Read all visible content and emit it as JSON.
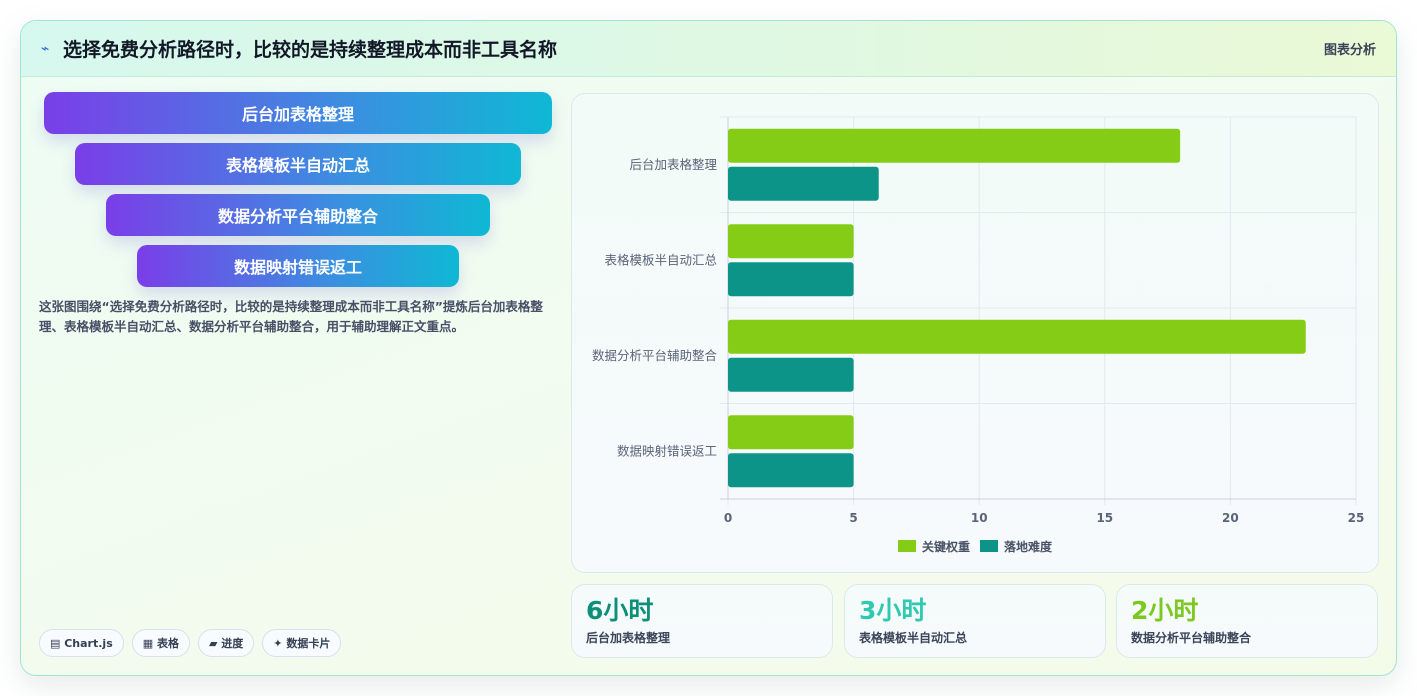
{
  "header": {
    "icon": "lightning-icon",
    "title": "选择免费分析路径时，比较的是持续整理成本而非工具名称",
    "tag": "图表分析"
  },
  "funnel": {
    "items": [
      "后台加表格整理",
      "表格模板半自动汇总",
      "数据分析平台辅助整合",
      "数据映射错误返工"
    ]
  },
  "description": "这张图围绕“选择免费分析路径时，比较的是持续整理成本而非工具名称”提炼后台加表格整理、表格模板半自动汇总、数据分析平台辅助整合，用于辅助理解正文重点。",
  "chips": [
    {
      "icon": "chart-icon",
      "label": "Chart.js"
    },
    {
      "icon": "table-icon",
      "label": "表格"
    },
    {
      "icon": "progress-icon",
      "label": "进度"
    },
    {
      "icon": "sparkle-icon",
      "label": "数据卡片"
    }
  ],
  "stats": [
    {
      "value": "6小时",
      "label": "后台加表格整理",
      "color": "#0d8f7a"
    },
    {
      "value": "3小时",
      "label": "表格模板半自动汇总",
      "color": "#2ec9b0"
    },
    {
      "value": "2小时",
      "label": "数据分析平台辅助整合",
      "color": "#7cc820"
    }
  ],
  "chart_data": {
    "type": "bar",
    "orientation": "horizontal",
    "categories": [
      "后台加表格整理",
      "表格模板半自动汇总",
      "数据分析平台辅助整合",
      "数据映射错误返工"
    ],
    "series": [
      {
        "name": "关键权重",
        "values": [
          18,
          5,
          23,
          5
        ],
        "color": "#84cc16"
      },
      {
        "name": "落地难度",
        "values": [
          6,
          5,
          5,
          5
        ],
        "color": "#0d9488"
      }
    ],
    "xlim": [
      0,
      25
    ],
    "xticks": [
      0,
      5,
      10,
      15,
      20,
      25
    ],
    "grid": true,
    "legend": "bottom"
  }
}
